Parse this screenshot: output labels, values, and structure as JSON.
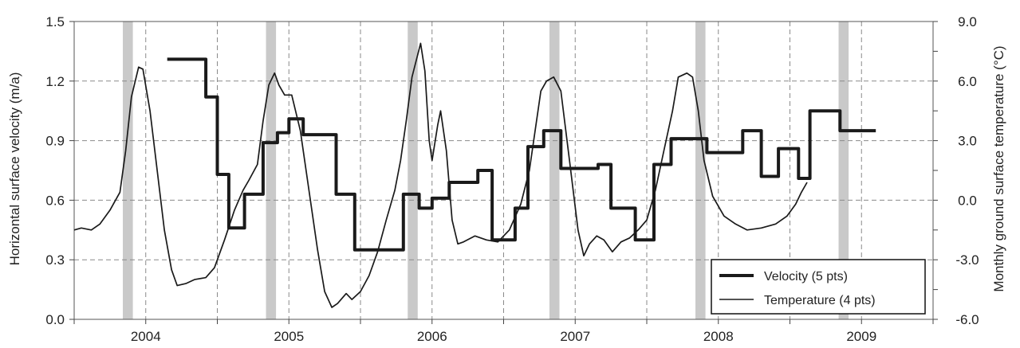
{
  "chart_data": {
    "type": "line",
    "xlabel": "",
    "ylabel": "Horizontal surface velocity (m/a)",
    "y2label": "Monthly ground surface temperature (°C)",
    "xlim": [
      2003.5,
      2009.5
    ],
    "ylim": [
      0.0,
      1.5
    ],
    "y2lim": [
      -6.0,
      9.0
    ],
    "x_ticks": [
      {
        "value": 2004,
        "label": "2004"
      },
      {
        "value": 2005,
        "label": "2005"
      },
      {
        "value": 2006,
        "label": "2006"
      },
      {
        "value": 2007,
        "label": "2007"
      },
      {
        "value": 2008,
        "label": "2008"
      },
      {
        "value": 2009,
        "label": "2009"
      }
    ],
    "y_ticks": [
      {
        "value": 0.0,
        "label": "0.0"
      },
      {
        "value": 0.3,
        "label": "0.3"
      },
      {
        "value": 0.6,
        "label": "0.6"
      },
      {
        "value": 0.9,
        "label": "0.9"
      },
      {
        "value": 1.2,
        "label": "1.2"
      },
      {
        "value": 1.5,
        "label": "1.5"
      }
    ],
    "y2_ticks": [
      {
        "value": -6.0,
        "label": "-6.0"
      },
      {
        "value": -3.0,
        "label": "-3.0"
      },
      {
        "value": 0.0,
        "label": "0.0"
      },
      {
        "value": 3.0,
        "label": "3.0"
      },
      {
        "value": 6.0,
        "label": "6.0"
      },
      {
        "value": 9.0,
        "label": "9.0"
      }
    ],
    "grid": true,
    "shaded_periods": [
      [
        2003.84,
        2003.91
      ],
      [
        2004.84,
        2004.91
      ],
      [
        2005.83,
        2005.9
      ],
      [
        2006.82,
        2006.89
      ],
      [
        2007.84,
        2007.91
      ],
      [
        2008.84,
        2008.91
      ]
    ],
    "legend_position": "bottom-right",
    "series": [
      {
        "name": "Velocity (5 pts)",
        "axis": "left",
        "style": "step",
        "color": "#1a1a1a",
        "points": [
          [
            2004.15,
            1.31
          ],
          [
            2004.42,
            1.31
          ],
          [
            2004.42,
            1.12
          ],
          [
            2004.5,
            1.12
          ],
          [
            2004.5,
            0.73
          ],
          [
            2004.58,
            0.73
          ],
          [
            2004.58,
            0.46
          ],
          [
            2004.69,
            0.46
          ],
          [
            2004.69,
            0.63
          ],
          [
            2004.82,
            0.63
          ],
          [
            2004.82,
            0.89
          ],
          [
            2004.92,
            0.89
          ],
          [
            2004.92,
            0.94
          ],
          [
            2005.0,
            0.94
          ],
          [
            2005.0,
            1.01
          ],
          [
            2005.1,
            1.01
          ],
          [
            2005.1,
            0.93
          ],
          [
            2005.33,
            0.93
          ],
          [
            2005.33,
            0.63
          ],
          [
            2005.46,
            0.63
          ],
          [
            2005.46,
            0.35
          ],
          [
            2005.8,
            0.35
          ],
          [
            2005.8,
            0.63
          ],
          [
            2005.91,
            0.63
          ],
          [
            2005.91,
            0.56
          ],
          [
            2006.0,
            0.56
          ],
          [
            2006.0,
            0.61
          ],
          [
            2006.12,
            0.61
          ],
          [
            2006.12,
            0.69
          ],
          [
            2006.32,
            0.69
          ],
          [
            2006.32,
            0.75
          ],
          [
            2006.42,
            0.75
          ],
          [
            2006.42,
            0.4
          ],
          [
            2006.58,
            0.4
          ],
          [
            2006.58,
            0.56
          ],
          [
            2006.67,
            0.56
          ],
          [
            2006.67,
            0.87
          ],
          [
            2006.78,
            0.87
          ],
          [
            2006.78,
            0.95
          ],
          [
            2006.9,
            0.95
          ],
          [
            2006.9,
            0.76
          ],
          [
            2007.16,
            0.76
          ],
          [
            2007.16,
            0.78
          ],
          [
            2007.25,
            0.78
          ],
          [
            2007.25,
            0.56
          ],
          [
            2007.42,
            0.56
          ],
          [
            2007.42,
            0.4
          ],
          [
            2007.55,
            0.4
          ],
          [
            2007.55,
            0.78
          ],
          [
            2007.67,
            0.78
          ],
          [
            2007.67,
            0.91
          ],
          [
            2007.92,
            0.91
          ],
          [
            2007.92,
            0.84
          ],
          [
            2008.17,
            0.84
          ],
          [
            2008.17,
            0.95
          ],
          [
            2008.3,
            0.95
          ],
          [
            2008.3,
            0.72
          ],
          [
            2008.42,
            0.72
          ],
          [
            2008.42,
            0.86
          ],
          [
            2008.56,
            0.86
          ],
          [
            2008.56,
            0.71
          ],
          [
            2008.64,
            0.71
          ],
          [
            2008.64,
            1.05
          ],
          [
            2008.85,
            1.05
          ],
          [
            2008.85,
            0.95
          ],
          [
            2009.1,
            0.95
          ]
        ]
      },
      {
        "name": "Temperature (4 pts)",
        "axis": "right",
        "style": "line",
        "color": "#1a1a1a",
        "points": [
          [
            2003.5,
            -1.5
          ],
          [
            2003.55,
            -1.4
          ],
          [
            2003.62,
            -1.5
          ],
          [
            2003.68,
            -1.2
          ],
          [
            2003.75,
            -0.5
          ],
          [
            2003.82,
            0.4
          ],
          [
            2003.86,
            2.5
          ],
          [
            2003.9,
            5.2
          ],
          [
            2003.95,
            6.7
          ],
          [
            2003.98,
            6.6
          ],
          [
            2004.03,
            4.5
          ],
          [
            2004.08,
            1.5
          ],
          [
            2004.13,
            -1.5
          ],
          [
            2004.18,
            -3.5
          ],
          [
            2004.22,
            -4.3
          ],
          [
            2004.28,
            -4.2
          ],
          [
            2004.34,
            -4.0
          ],
          [
            2004.42,
            -3.9
          ],
          [
            2004.48,
            -3.4
          ],
          [
            2004.55,
            -2.0
          ],
          [
            2004.62,
            -0.5
          ],
          [
            2004.68,
            0.5
          ],
          [
            2004.72,
            1.0
          ],
          [
            2004.78,
            1.8
          ],
          [
            2004.82,
            4.0
          ],
          [
            2004.86,
            5.8
          ],
          [
            2004.9,
            6.4
          ],
          [
            2004.93,
            5.8
          ],
          [
            2004.97,
            5.3
          ],
          [
            2005.02,
            5.3
          ],
          [
            2005.08,
            3.5
          ],
          [
            2005.14,
            0.5
          ],
          [
            2005.2,
            -2.5
          ],
          [
            2005.25,
            -4.6
          ],
          [
            2005.3,
            -5.4
          ],
          [
            2005.34,
            -5.2
          ],
          [
            2005.4,
            -4.7
          ],
          [
            2005.44,
            -5.0
          ],
          [
            2005.5,
            -4.6
          ],
          [
            2005.56,
            -3.8
          ],
          [
            2005.62,
            -2.6
          ],
          [
            2005.68,
            -1.0
          ],
          [
            2005.74,
            0.5
          ],
          [
            2005.78,
            2.0
          ],
          [
            2005.82,
            4.0
          ],
          [
            2005.86,
            6.2
          ],
          [
            2005.92,
            7.9
          ],
          [
            2005.95,
            6.5
          ],
          [
            2005.98,
            3.0
          ],
          [
            2006.0,
            2.0
          ],
          [
            2006.04,
            3.8
          ],
          [
            2006.06,
            4.5
          ],
          [
            2006.1,
            2.5
          ],
          [
            2006.14,
            -1.0
          ],
          [
            2006.18,
            -2.2
          ],
          [
            2006.22,
            -2.1
          ],
          [
            2006.3,
            -1.8
          ],
          [
            2006.38,
            -2.0
          ],
          [
            2006.46,
            -2.1
          ],
          [
            2006.54,
            -1.5
          ],
          [
            2006.62,
            -0.2
          ],
          [
            2006.68,
            1.5
          ],
          [
            2006.72,
            3.5
          ],
          [
            2006.76,
            5.5
          ],
          [
            2006.8,
            6.0
          ],
          [
            2006.85,
            6.2
          ],
          [
            2006.9,
            5.5
          ],
          [
            2006.96,
            2.0
          ],
          [
            2007.02,
            -1.5
          ],
          [
            2007.06,
            -2.8
          ],
          [
            2007.1,
            -2.2
          ],
          [
            2007.15,
            -1.8
          ],
          [
            2007.2,
            -2.0
          ],
          [
            2007.26,
            -2.6
          ],
          [
            2007.32,
            -2.1
          ],
          [
            2007.38,
            -1.9
          ],
          [
            2007.44,
            -1.5
          ],
          [
            2007.5,
            -1.0
          ],
          [
            2007.56,
            0.5
          ],
          [
            2007.62,
            2.5
          ],
          [
            2007.68,
            4.5
          ],
          [
            2007.72,
            6.2
          ],
          [
            2007.78,
            6.4
          ],
          [
            2007.82,
            6.2
          ],
          [
            2007.86,
            4.5
          ],
          [
            2007.9,
            2.0
          ],
          [
            2007.96,
            0.2
          ],
          [
            2008.04,
            -0.8
          ],
          [
            2008.12,
            -1.2
          ],
          [
            2008.2,
            -1.5
          ],
          [
            2008.3,
            -1.4
          ],
          [
            2008.4,
            -1.2
          ],
          [
            2008.48,
            -0.8
          ],
          [
            2008.54,
            -0.2
          ],
          [
            2008.58,
            0.4
          ],
          [
            2008.62,
            0.9
          ]
        ]
      }
    ]
  }
}
